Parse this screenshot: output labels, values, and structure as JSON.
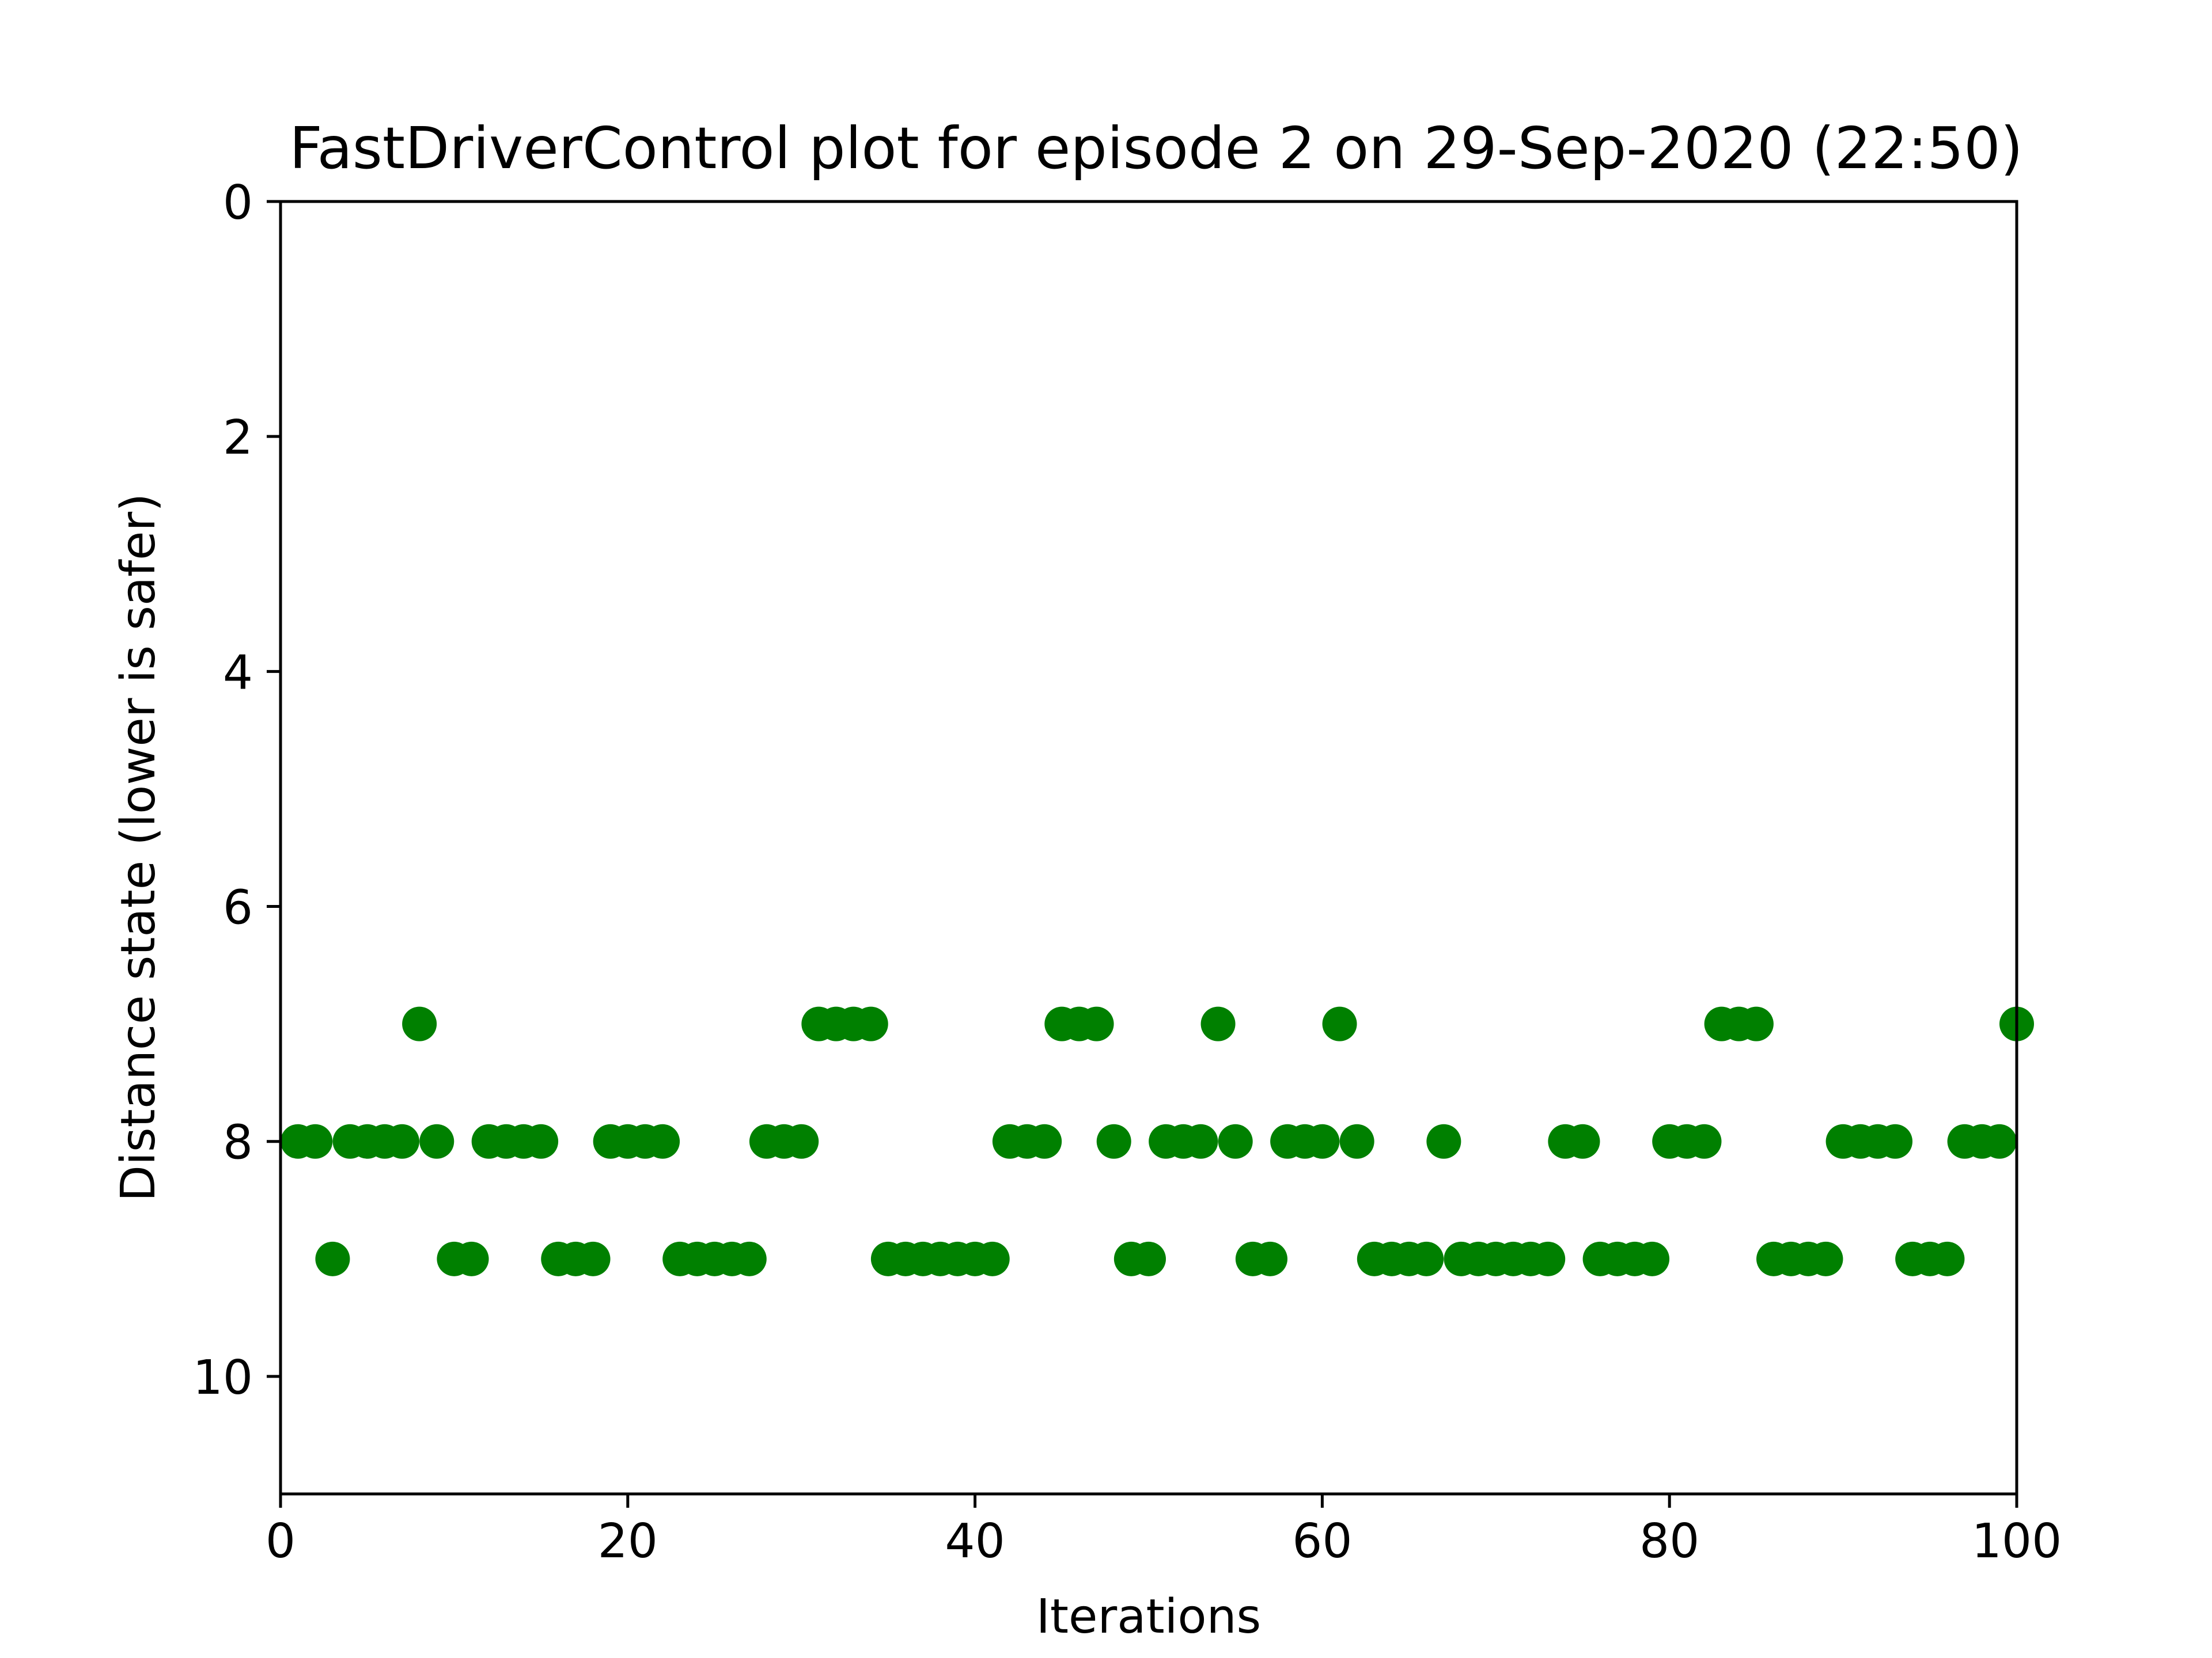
{
  "chart_data": {
    "type": "scatter",
    "title": "FastDriverControl plot for episode 2 on 29-Sep-2020 (22:50)",
    "xlabel": "Iterations",
    "ylabel": "Distance state (lower is safer)",
    "xlim": [
      0,
      100
    ],
    "ylim": [
      11,
      0
    ],
    "y_inverted": true,
    "grid": false,
    "legend": "none",
    "x_ticks": [
      0,
      20,
      40,
      60,
      80,
      100
    ],
    "y_ticks": [
      0,
      2,
      4,
      6,
      8,
      10
    ],
    "marker_color": "#008000",
    "series": [
      {
        "x": [
          1,
          2,
          3,
          4,
          5,
          6,
          7,
          8,
          9,
          10,
          11,
          12,
          13,
          14,
          15,
          16,
          17,
          18,
          19,
          20,
          21,
          22,
          23,
          24,
          25,
          26,
          27,
          28,
          29,
          30,
          31,
          32,
          33,
          34,
          35,
          36,
          37,
          38,
          39,
          40,
          41,
          42,
          43,
          44,
          45,
          46,
          47,
          48,
          49,
          50,
          51,
          52,
          53,
          54,
          55,
          56,
          57,
          58,
          59,
          60,
          61,
          62,
          63,
          64,
          65,
          66,
          67,
          68,
          69,
          70,
          71,
          72,
          73,
          74,
          75,
          76,
          77,
          78,
          79,
          80,
          81,
          82,
          83,
          84,
          85,
          86,
          87,
          88,
          89,
          90,
          91,
          92,
          93,
          94,
          95,
          96,
          97,
          98,
          99,
          100
        ],
        "y": [
          8,
          8,
          9,
          8,
          8,
          8,
          8,
          7,
          8,
          9,
          9,
          8,
          8,
          8,
          8,
          9,
          9,
          9,
          8,
          8,
          8,
          8,
          9,
          9,
          9,
          9,
          9,
          8,
          8,
          8,
          7,
          7,
          7,
          7,
          9,
          9,
          9,
          9,
          9,
          9,
          9,
          8,
          8,
          8,
          7,
          7,
          7,
          8,
          9,
          9,
          8,
          8,
          8,
          7,
          8,
          9,
          9,
          8,
          8,
          8,
          7,
          8,
          9,
          9,
          9,
          9,
          8,
          9,
          9,
          9,
          9,
          9,
          9,
          8,
          8,
          9,
          9,
          9,
          9,
          8,
          8,
          8,
          7,
          7,
          7,
          9,
          9,
          9,
          9,
          8,
          8,
          8,
          8,
          9,
          9,
          9,
          8,
          8,
          8,
          7
        ]
      }
    ]
  }
}
